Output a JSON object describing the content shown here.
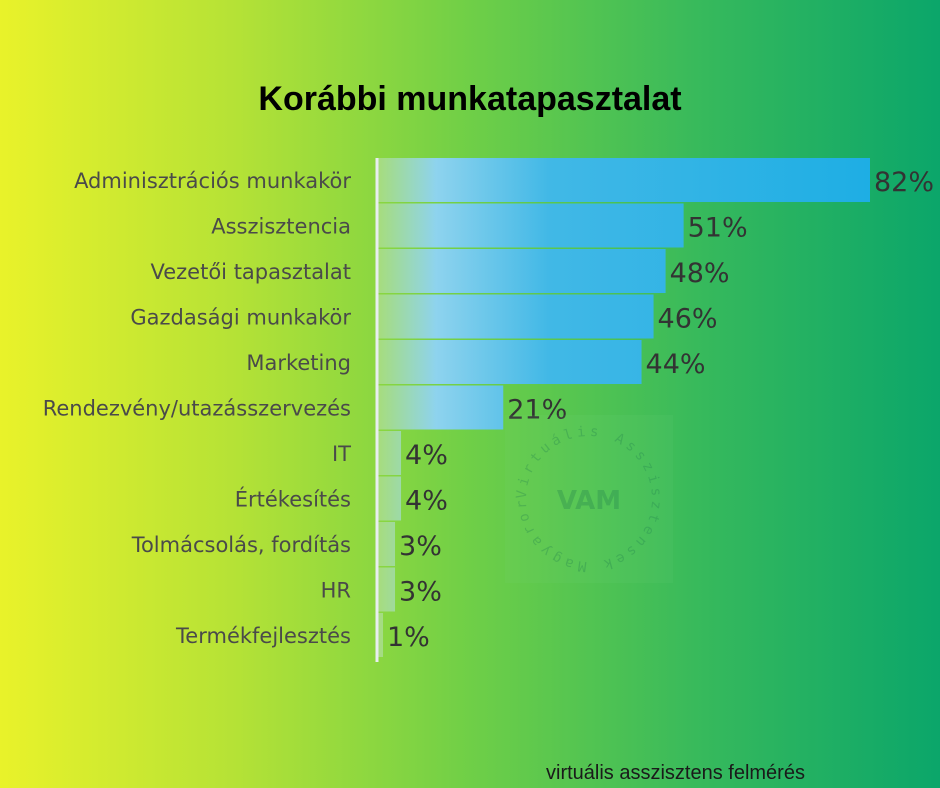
{
  "chart_data": {
    "type": "bar",
    "orientation": "horizontal",
    "title": "Korábbi munkatapasztalat",
    "categories": [
      "Adminisztrációs munkakör",
      "Asszisztencia",
      "Vezetői tapasztalat",
      "Gazdasági munkakör",
      "Marketing",
      "Rendezvény/utazásszervezés",
      "IT",
      "Értékesítés",
      "Tolmácsolás, fordítás",
      "HR",
      "Termékfejlesztés"
    ],
    "values": [
      82,
      51,
      48,
      46,
      44,
      21,
      4,
      4,
      3,
      3,
      1
    ],
    "value_labels": [
      "82%",
      "51%",
      "48%",
      "46%",
      "44%",
      "21%",
      "4%",
      "4%",
      "3%",
      "3%",
      "1%"
    ],
    "xlim": [
      0,
      82
    ],
    "grid": false,
    "legend": "none",
    "colors": {
      "bar": "#1eaee4",
      "bar_light": "#8dd3f0"
    }
  },
  "watermark": {
    "ring_text": "Virtuális Asszisztensek Magyarországon",
    "center_text": "VAM",
    "color": "#2e8b57"
  },
  "footer": {
    "text": "virtuális asszisztens felmérés"
  }
}
